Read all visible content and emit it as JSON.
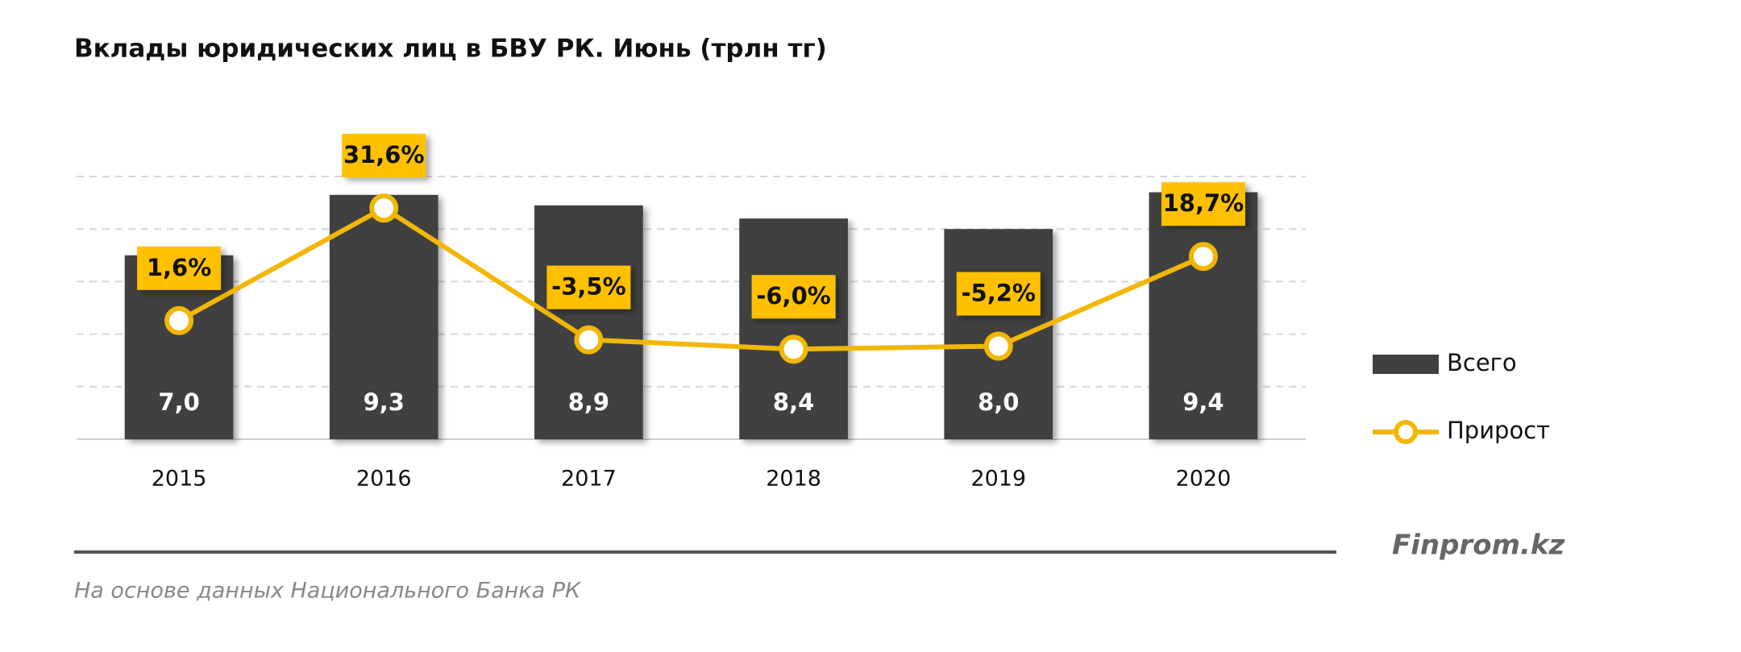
{
  "chart_data": {
    "type": "bar-line",
    "title": "Вклады юридических лиц в БВУ РК. Июнь (трлн тг)",
    "categories": [
      "2015",
      "2016",
      "2017",
      "2018",
      "2019",
      "2020"
    ],
    "series": [
      {
        "name": "Всего",
        "type": "bar",
        "color": "#404040",
        "values": [
          7.0,
          9.3,
          8.9,
          8.4,
          8.0,
          9.4
        ],
        "value_labels": [
          "7,0",
          "9,3",
          "8,9",
          "8,4",
          "8,0",
          "9,4"
        ]
      },
      {
        "name": "Прирост",
        "type": "line",
        "axis": "y2",
        "color": "#f2b705",
        "label_color": "#ffc000",
        "values": [
          1.6,
          31.6,
          -3.5,
          -6.0,
          -5.2,
          18.7
        ],
        "value_labels": [
          "1,6%",
          "31,6%",
          "-3,5%",
          "-6,0%",
          "-5,2%",
          "18,7%"
        ]
      }
    ],
    "ylim": [
      0,
      10
    ],
    "yticks": [
      0,
      2,
      4,
      6,
      8,
      10
    ],
    "y2lim": [
      -30,
      40
    ],
    "grid": true,
    "legend": "right",
    "watermark": "Finprom.kz",
    "source": "На основе данных Национального Банка РК"
  }
}
